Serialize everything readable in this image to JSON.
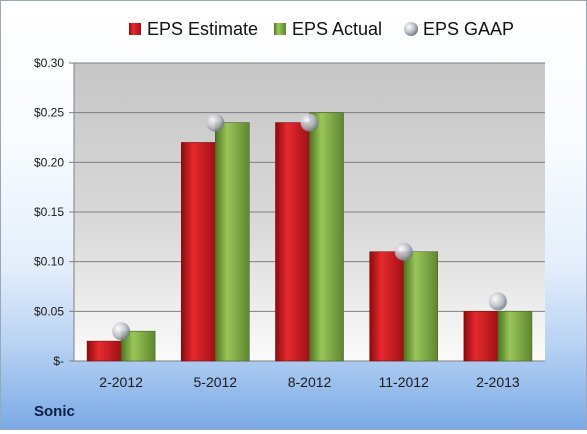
{
  "chart_data": {
    "type": "bar",
    "categories": [
      "2-2012",
      "5-2012",
      "8-2012",
      "11-2012",
      "2-2013"
    ],
    "series": [
      {
        "name": "EPS Estimate",
        "kind": "bar",
        "values": [
          0.02,
          0.22,
          0.24,
          0.11,
          0.05
        ]
      },
      {
        "name": "EPS Actual",
        "kind": "bar",
        "values": [
          0.03,
          0.24,
          0.25,
          0.11,
          0.05
        ]
      },
      {
        "name": "EPS GAAP",
        "kind": "marker",
        "values": [
          0.03,
          0.24,
          0.24,
          0.11,
          0.06
        ]
      }
    ],
    "ylim": [
      0,
      0.3
    ],
    "yticks": [
      0,
      0.05,
      0.1,
      0.15,
      0.2,
      0.25,
      0.3
    ],
    "ytick_labels": [
      "$-",
      "$0.05",
      "$0.10",
      "$0.15",
      "$0.20",
      "$0.25",
      "$0.30"
    ],
    "grid": true,
    "legend_position": "top",
    "colors": {
      "estimate": "#c8151b",
      "actual": "#77a03c",
      "gaap": "#b9bec6"
    }
  },
  "company": "Sonic"
}
